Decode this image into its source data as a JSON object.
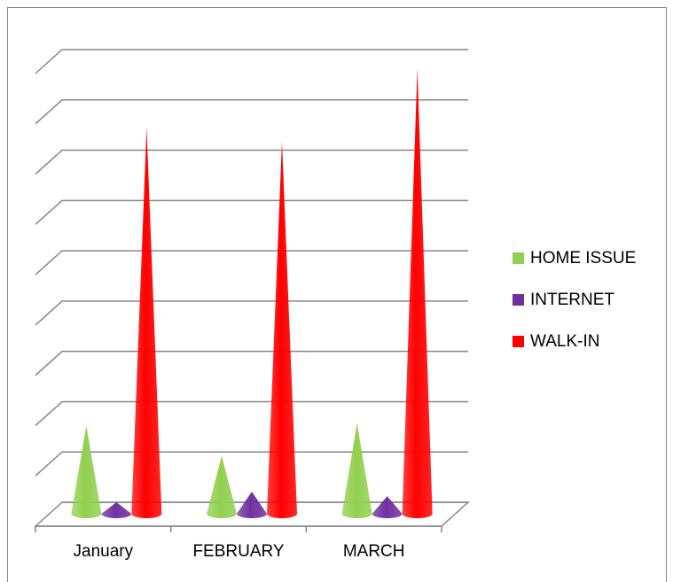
{
  "chart_data": {
    "type": "cone",
    "categories": [
      "January",
      "FEBRUARY",
      "MARCH"
    ],
    "series": [
      {
        "name": "HOME ISSUE",
        "color": "#92d050",
        "values": [
          1.75,
          1.15,
          1.8
        ]
      },
      {
        "name": "INTERNET",
        "color": "#7030a0",
        "values": [
          0.23,
          0.44,
          0.35
        ]
      },
      {
        "name": "WALK-IN",
        "color": "#ff0000",
        "values": [
          7.67,
          7.4,
          8.85
        ]
      }
    ],
    "ylim": [
      0,
      9
    ],
    "yticks": [
      0,
      1,
      2,
      3,
      4,
      5,
      6,
      7,
      8,
      9
    ],
    "grid": true,
    "legend": "right"
  }
}
